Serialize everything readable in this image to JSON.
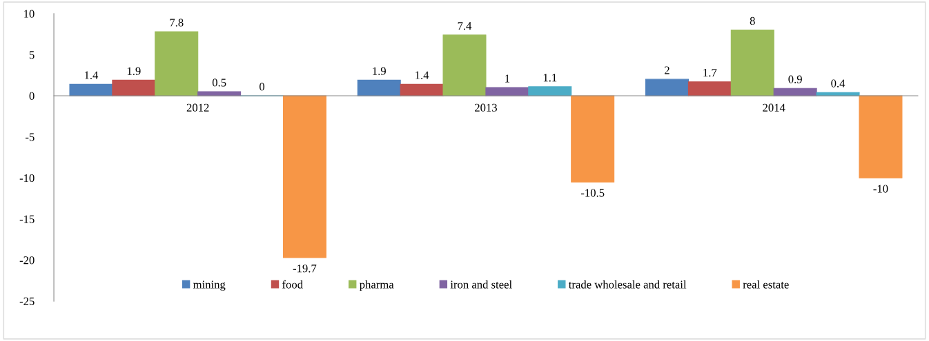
{
  "chart_data": {
    "type": "bar",
    "categories": [
      "2012",
      "2013",
      "2014"
    ],
    "series": [
      {
        "name": "mining",
        "color": "#4f81bd",
        "values": [
          1.4,
          1.9,
          2
        ]
      },
      {
        "name": "food",
        "color": "#c0504d",
        "values": [
          1.9,
          1.4,
          1.7
        ]
      },
      {
        "name": "pharma",
        "color": "#9bbb59",
        "values": [
          7.8,
          7.4,
          8
        ]
      },
      {
        "name": "iron and steel",
        "color": "#8064a2",
        "values": [
          0.5,
          1,
          0.9
        ]
      },
      {
        "name": "trade wholesale and retail",
        "color": "#4bacc6",
        "values": [
          0,
          1.1,
          0.4
        ]
      },
      {
        "name": "real estate",
        "color": "#f79646",
        "values": [
          -19.7,
          -10.5,
          -10
        ]
      }
    ],
    "ylim": [
      -25,
      10
    ],
    "yticks": [
      -25,
      -20,
      -15,
      -10,
      -5,
      0,
      5,
      10
    ],
    "data_labels": true,
    "legend": "bottom",
    "grid": false
  }
}
